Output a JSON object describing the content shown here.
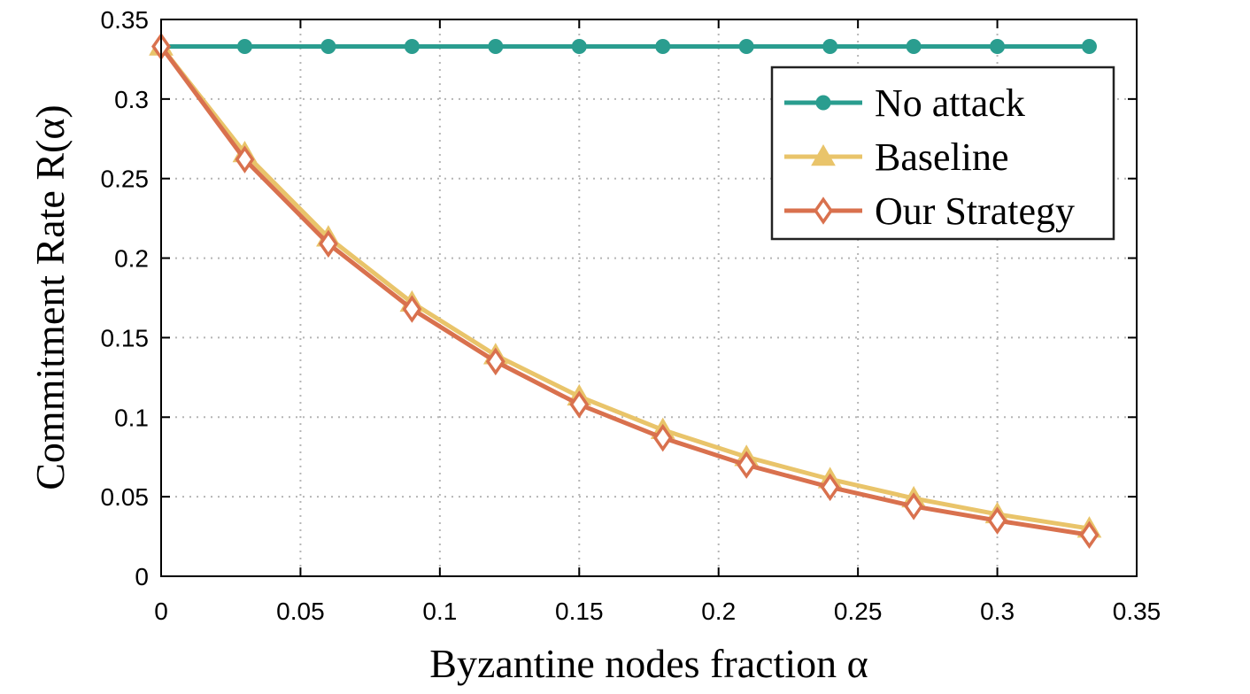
{
  "chart_data": {
    "type": "line",
    "xlabel": "Byzantine nodes fraction α",
    "ylabel": "Commitment Rate R(α)",
    "xlim": [
      0,
      0.35
    ],
    "ylim": [
      0,
      0.35
    ],
    "xticks": [
      "0",
      "0.05",
      "0.1",
      "0.15",
      "0.2",
      "0.25",
      "0.3",
      "0.35"
    ],
    "yticks": [
      "0",
      "0.05",
      "0.1",
      "0.15",
      "0.2",
      "0.25",
      "0.3",
      "0.35"
    ],
    "grid": true,
    "legend_position": "top-right",
    "x": [
      0,
      0.03,
      0.06,
      0.09,
      0.12,
      0.15,
      0.18,
      0.21,
      0.24,
      0.27,
      0.3,
      0.333
    ],
    "series": [
      {
        "name": "No attack",
        "marker": "circle",
        "color": "#2a9d8f",
        "values": [
          0.333,
          0.333,
          0.333,
          0.333,
          0.333,
          0.333,
          0.333,
          0.333,
          0.333,
          0.333,
          0.333,
          0.333
        ]
      },
      {
        "name": "Baseline",
        "marker": "triangle",
        "color": "#e9c46a",
        "values": [
          0.333,
          0.266,
          0.213,
          0.172,
          0.139,
          0.113,
          0.092,
          0.075,
          0.061,
          0.049,
          0.039,
          0.03
        ]
      },
      {
        "name": "Our Strategy",
        "marker": "diamond",
        "color": "#d9714e",
        "values": [
          0.333,
          0.262,
          0.209,
          0.168,
          0.135,
          0.108,
          0.087,
          0.07,
          0.056,
          0.044,
          0.035,
          0.026
        ]
      }
    ]
  }
}
